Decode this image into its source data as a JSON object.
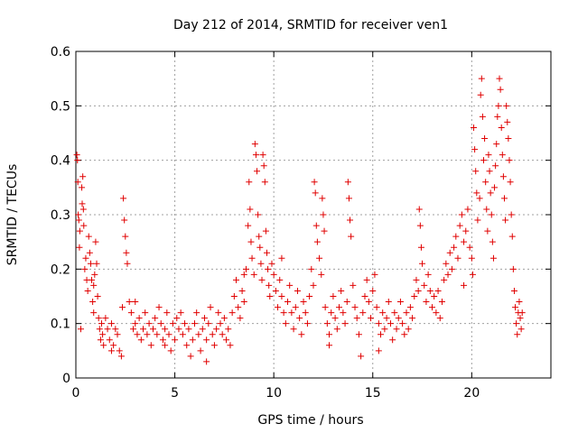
{
  "chart_data": {
    "type": "scatter",
    "title": "Day 212 of 2014, SRMTID for receiver ven1",
    "xlabel": "GPS time / hours",
    "ylabel": "SRMTID / TECUs",
    "xlim": [
      0,
      24
    ],
    "ylim": [
      0,
      0.6
    ],
    "xticks": [
      0,
      5,
      10,
      15,
      20
    ],
    "yticks": [
      0,
      0.1,
      0.2,
      0.3,
      0.4,
      0.5,
      0.6
    ],
    "xtick_labels": [
      "0",
      "5",
      "10",
      "15",
      "20"
    ],
    "ytick_labels": [
      "0",
      "0.1",
      "0.2",
      "0.3",
      "0.4",
      "0.5",
      "0.6"
    ],
    "grid": true,
    "marker": "+",
    "series": [
      {
        "name": "SRMTID",
        "color": "#e00000",
        "points": [
          [
            0.05,
            0.41
          ],
          [
            0.08,
            0.4
          ],
          [
            0.1,
            0.36
          ],
          [
            0.12,
            0.3
          ],
          [
            0.15,
            0.29
          ],
          [
            0.18,
            0.24
          ],
          [
            0.2,
            0.27
          ],
          [
            0.25,
            0.09
          ],
          [
            0.3,
            0.35
          ],
          [
            0.32,
            0.32
          ],
          [
            0.35,
            0.37
          ],
          [
            0.38,
            0.31
          ],
          [
            0.4,
            0.28
          ],
          [
            0.45,
            0.2
          ],
          [
            0.5,
            0.22
          ],
          [
            0.55,
            0.18
          ],
          [
            0.6,
            0.16
          ],
          [
            0.65,
            0.26
          ],
          [
            0.7,
            0.23
          ],
          [
            0.75,
            0.21
          ],
          [
            0.8,
            0.18
          ],
          [
            0.85,
            0.14
          ],
          [
            0.9,
            0.12
          ],
          [
            0.95,
            0.19
          ],
          [
            1.0,
            0.25
          ],
          [
            1.05,
            0.21
          ],
          [
            1.1,
            0.15
          ],
          [
            1.15,
            0.11
          ],
          [
            1.2,
            0.09
          ],
          [
            1.25,
            0.07
          ],
          [
            1.3,
            0.1
          ],
          [
            1.35,
            0.08
          ],
          [
            1.4,
            0.06
          ],
          [
            1.5,
            0.11
          ],
          [
            1.6,
            0.09
          ],
          [
            1.7,
            0.07
          ],
          [
            1.8,
            0.1
          ],
          [
            1.9,
            0.06
          ],
          [
            2.0,
            0.09
          ],
          [
            2.1,
            0.08
          ],
          [
            2.2,
            0.05
          ],
          [
            2.3,
            0.04
          ],
          [
            2.35,
            0.13
          ],
          [
            2.4,
            0.33
          ],
          [
            2.45,
            0.29
          ],
          [
            2.5,
            0.26
          ],
          [
            2.55,
            0.23
          ],
          [
            2.6,
            0.21
          ],
          [
            2.7,
            0.14
          ],
          [
            2.8,
            0.12
          ],
          [
            2.9,
            0.09
          ],
          [
            3.0,
            0.1
          ],
          [
            3.1,
            0.08
          ],
          [
            3.2,
            0.11
          ],
          [
            3.3,
            0.07
          ],
          [
            3.4,
            0.09
          ],
          [
            3.5,
            0.12
          ],
          [
            3.6,
            0.08
          ],
          [
            3.7,
            0.1
          ],
          [
            3.8,
            0.06
          ],
          [
            3.9,
            0.09
          ],
          [
            4.0,
            0.11
          ],
          [
            4.1,
            0.08
          ],
          [
            4.2,
            0.13
          ],
          [
            4.3,
            0.1
          ],
          [
            4.4,
            0.07
          ],
          [
            4.5,
            0.09
          ],
          [
            4.6,
            0.12
          ],
          [
            4.7,
            0.08
          ],
          [
            4.8,
            0.05
          ],
          [
            4.9,
            0.1
          ],
          [
            5.0,
            0.07
          ],
          [
            5.1,
            0.11
          ],
          [
            5.2,
            0.09
          ],
          [
            5.3,
            0.12
          ],
          [
            5.4,
            0.08
          ],
          [
            5.5,
            0.1
          ],
          [
            5.6,
            0.06
          ],
          [
            5.7,
            0.09
          ],
          [
            5.8,
            0.04
          ],
          [
            5.9,
            0.07
          ],
          [
            6.0,
            0.1
          ],
          [
            6.1,
            0.12
          ],
          [
            6.2,
            0.08
          ],
          [
            6.3,
            0.05
          ],
          [
            6.4,
            0.09
          ],
          [
            6.5,
            0.11
          ],
          [
            6.6,
            0.07
          ],
          [
            6.7,
            0.1
          ],
          [
            6.8,
            0.13
          ],
          [
            6.9,
            0.08
          ],
          [
            7.0,
            0.06
          ],
          [
            7.1,
            0.09
          ],
          [
            7.2,
            0.12
          ],
          [
            7.3,
            0.1
          ],
          [
            7.4,
            0.08
          ],
          [
            7.5,
            0.11
          ],
          [
            7.6,
            0.07
          ],
          [
            7.7,
            0.09
          ],
          [
            7.8,
            0.06
          ],
          [
            7.9,
            0.12
          ],
          [
            8.0,
            0.15
          ],
          [
            8.1,
            0.18
          ],
          [
            8.2,
            0.13
          ],
          [
            8.3,
            0.11
          ],
          [
            8.4,
            0.16
          ],
          [
            8.5,
            0.14
          ],
          [
            8.6,
            0.2
          ],
          [
            8.7,
            0.28
          ],
          [
            8.75,
            0.36
          ],
          [
            8.8,
            0.31
          ],
          [
            8.85,
            0.25
          ],
          [
            8.9,
            0.22
          ],
          [
            9.0,
            0.19
          ],
          [
            9.05,
            0.43
          ],
          [
            9.1,
            0.41
          ],
          [
            9.15,
            0.38
          ],
          [
            9.2,
            0.3
          ],
          [
            9.25,
            0.26
          ],
          [
            9.3,
            0.24
          ],
          [
            9.35,
            0.21
          ],
          [
            9.4,
            0.18
          ],
          [
            9.45,
            0.41
          ],
          [
            9.5,
            0.39
          ],
          [
            9.55,
            0.36
          ],
          [
            9.6,
            0.27
          ],
          [
            9.65,
            0.23
          ],
          [
            9.7,
            0.2
          ],
          [
            9.75,
            0.17
          ],
          [
            9.8,
            0.15
          ],
          [
            9.9,
            0.21
          ],
          [
            10.0,
            0.19
          ],
          [
            10.1,
            0.16
          ],
          [
            10.2,
            0.13
          ],
          [
            10.3,
            0.18
          ],
          [
            10.4,
            0.15
          ],
          [
            10.5,
            0.12
          ],
          [
            10.6,
            0.1
          ],
          [
            10.7,
            0.14
          ],
          [
            10.8,
            0.17
          ],
          [
            10.9,
            0.12
          ],
          [
            11.0,
            0.09
          ],
          [
            11.1,
            0.13
          ],
          [
            11.2,
            0.16
          ],
          [
            11.3,
            0.11
          ],
          [
            11.4,
            0.08
          ],
          [
            11.5,
            0.14
          ],
          [
            11.6,
            0.12
          ],
          [
            11.7,
            0.1
          ],
          [
            11.8,
            0.15
          ],
          [
            11.9,
            0.2
          ],
          [
            12.0,
            0.17
          ],
          [
            12.05,
            0.36
          ],
          [
            12.1,
            0.34
          ],
          [
            12.15,
            0.28
          ],
          [
            12.2,
            0.25
          ],
          [
            12.3,
            0.22
          ],
          [
            12.4,
            0.19
          ],
          [
            12.45,
            0.33
          ],
          [
            12.5,
            0.3
          ],
          [
            12.55,
            0.27
          ],
          [
            12.6,
            0.13
          ],
          [
            12.7,
            0.1
          ],
          [
            12.8,
            0.08
          ],
          [
            12.9,
            0.12
          ],
          [
            13.0,
            0.15
          ],
          [
            13.1,
            0.11
          ],
          [
            13.2,
            0.09
          ],
          [
            13.3,
            0.13
          ],
          [
            13.4,
            0.16
          ],
          [
            13.5,
            0.12
          ],
          [
            13.6,
            0.1
          ],
          [
            13.7,
            0.14
          ],
          [
            13.75,
            0.36
          ],
          [
            13.8,
            0.33
          ],
          [
            13.85,
            0.29
          ],
          [
            13.9,
            0.26
          ],
          [
            14.0,
            0.17
          ],
          [
            14.1,
            0.13
          ],
          [
            14.2,
            0.11
          ],
          [
            14.3,
            0.08
          ],
          [
            14.4,
            0.04
          ],
          [
            14.5,
            0.12
          ],
          [
            14.6,
            0.15
          ],
          [
            14.7,
            0.18
          ],
          [
            14.8,
            0.14
          ],
          [
            14.9,
            0.11
          ],
          [
            15.0,
            0.16
          ],
          [
            15.1,
            0.19
          ],
          [
            15.2,
            0.13
          ],
          [
            15.3,
            0.1
          ],
          [
            15.4,
            0.08
          ],
          [
            15.5,
            0.12
          ],
          [
            15.6,
            0.09
          ],
          [
            15.7,
            0.11
          ],
          [
            15.8,
            0.14
          ],
          [
            15.9,
            0.1
          ],
          [
            16.0,
            0.07
          ],
          [
            16.1,
            0.12
          ],
          [
            16.2,
            0.09
          ],
          [
            16.3,
            0.11
          ],
          [
            16.4,
            0.14
          ],
          [
            16.5,
            0.1
          ],
          [
            16.6,
            0.08
          ],
          [
            16.7,
            0.12
          ],
          [
            16.8,
            0.09
          ],
          [
            16.9,
            0.13
          ],
          [
            17.0,
            0.11
          ],
          [
            17.1,
            0.15
          ],
          [
            17.2,
            0.18
          ],
          [
            17.3,
            0.16
          ],
          [
            17.35,
            0.31
          ],
          [
            17.4,
            0.28
          ],
          [
            17.45,
            0.24
          ],
          [
            17.5,
            0.21
          ],
          [
            17.6,
            0.17
          ],
          [
            17.7,
            0.14
          ],
          [
            17.8,
            0.19
          ],
          [
            17.9,
            0.16
          ],
          [
            18.0,
            0.13
          ],
          [
            18.1,
            0.15
          ],
          [
            18.2,
            0.12
          ],
          [
            18.3,
            0.16
          ],
          [
            18.4,
            0.11
          ],
          [
            18.5,
            0.14
          ],
          [
            18.6,
            0.18
          ],
          [
            18.7,
            0.21
          ],
          [
            18.8,
            0.19
          ],
          [
            18.9,
            0.23
          ],
          [
            19.0,
            0.2
          ],
          [
            19.1,
            0.24
          ],
          [
            19.2,
            0.26
          ],
          [
            19.3,
            0.22
          ],
          [
            19.4,
            0.28
          ],
          [
            19.5,
            0.3
          ],
          [
            19.6,
            0.25
          ],
          [
            19.7,
            0.27
          ],
          [
            19.8,
            0.31
          ],
          [
            19.9,
            0.24
          ],
          [
            20.0,
            0.22
          ],
          [
            20.05,
            0.19
          ],
          [
            20.1,
            0.46
          ],
          [
            20.15,
            0.42
          ],
          [
            20.2,
            0.38
          ],
          [
            20.25,
            0.34
          ],
          [
            20.3,
            0.29
          ],
          [
            20.4,
            0.33
          ],
          [
            20.45,
            0.52
          ],
          [
            20.5,
            0.55
          ],
          [
            20.55,
            0.48
          ],
          [
            20.6,
            0.4
          ],
          [
            20.65,
            0.44
          ],
          [
            20.7,
            0.36
          ],
          [
            20.75,
            0.31
          ],
          [
            20.8,
            0.27
          ],
          [
            20.85,
            0.41
          ],
          [
            20.9,
            0.38
          ],
          [
            20.95,
            0.34
          ],
          [
            21.0,
            0.3
          ],
          [
            21.05,
            0.25
          ],
          [
            21.1,
            0.22
          ],
          [
            21.15,
            0.35
          ],
          [
            21.2,
            0.39
          ],
          [
            21.25,
            0.43
          ],
          [
            21.3,
            0.48
          ],
          [
            21.35,
            0.5
          ],
          [
            21.4,
            0.55
          ],
          [
            21.45,
            0.53
          ],
          [
            21.5,
            0.46
          ],
          [
            21.55,
            0.41
          ],
          [
            21.6,
            0.37
          ],
          [
            21.65,
            0.33
          ],
          [
            21.7,
            0.29
          ],
          [
            21.75,
            0.5
          ],
          [
            21.8,
            0.47
          ],
          [
            21.85,
            0.44
          ],
          [
            21.9,
            0.4
          ],
          [
            21.95,
            0.36
          ],
          [
            22.0,
            0.3
          ],
          [
            22.05,
            0.26
          ],
          [
            22.1,
            0.2
          ],
          [
            22.15,
            0.16
          ],
          [
            22.2,
            0.13
          ],
          [
            22.25,
            0.1
          ],
          [
            22.3,
            0.08
          ],
          [
            22.35,
            0.12
          ],
          [
            22.4,
            0.14
          ],
          [
            22.45,
            0.11
          ],
          [
            22.5,
            0.09
          ],
          [
            22.55,
            0.12
          ],
          [
            0.9,
            0.17
          ],
          [
            1.8,
            0.05
          ],
          [
            3.0,
            0.14
          ],
          [
            4.5,
            0.06
          ],
          [
            6.6,
            0.03
          ],
          [
            8.5,
            0.19
          ],
          [
            10.4,
            0.22
          ],
          [
            12.8,
            0.06
          ],
          [
            15.3,
            0.05
          ],
          [
            19.6,
            0.17
          ]
        ]
      }
    ]
  }
}
